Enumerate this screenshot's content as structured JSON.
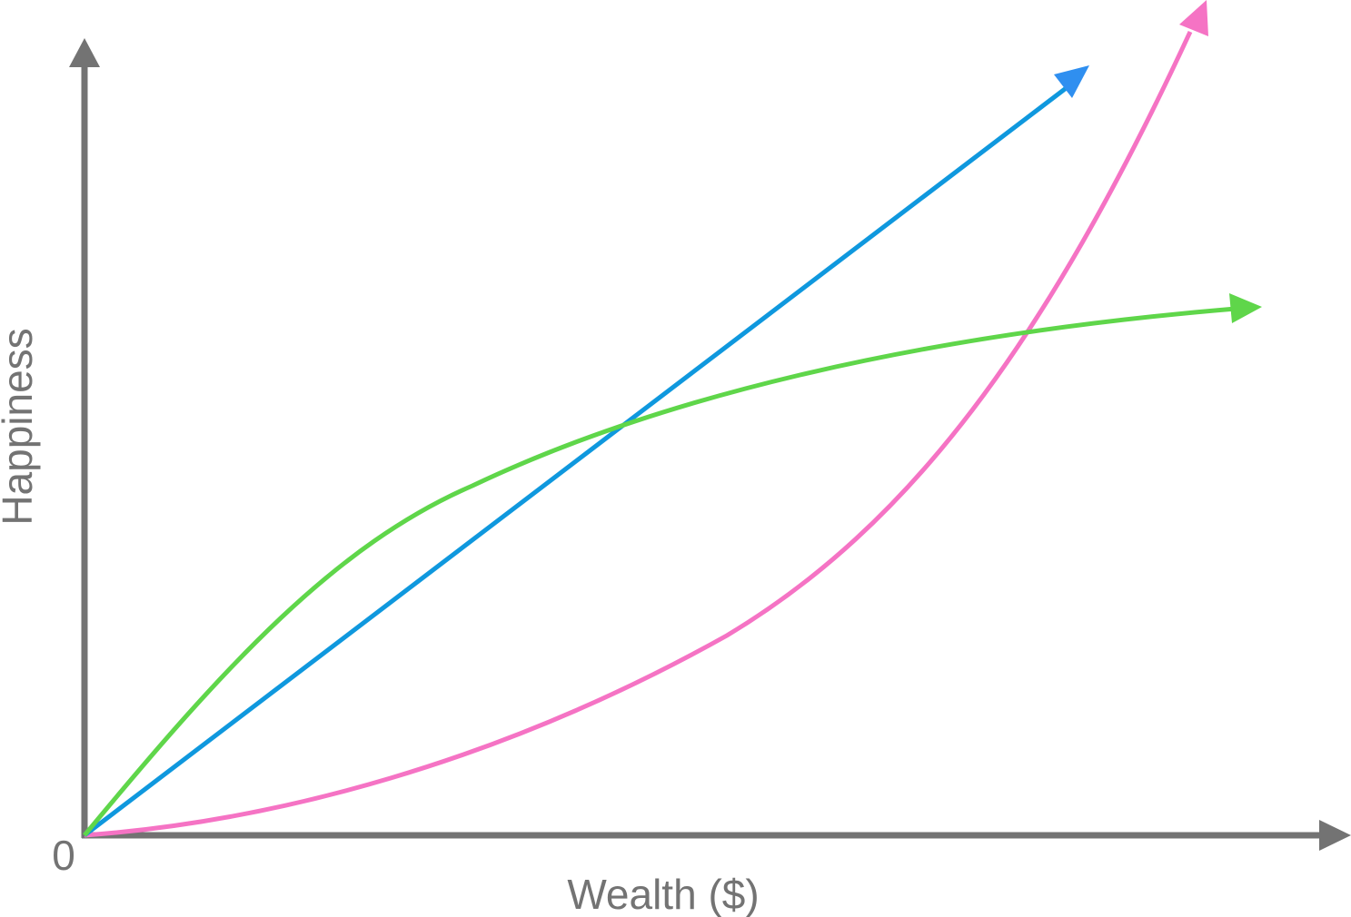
{
  "axes": {
    "y_label": "Happiness",
    "x_label": "Wealth ($)",
    "origin_label": "0"
  }
}
